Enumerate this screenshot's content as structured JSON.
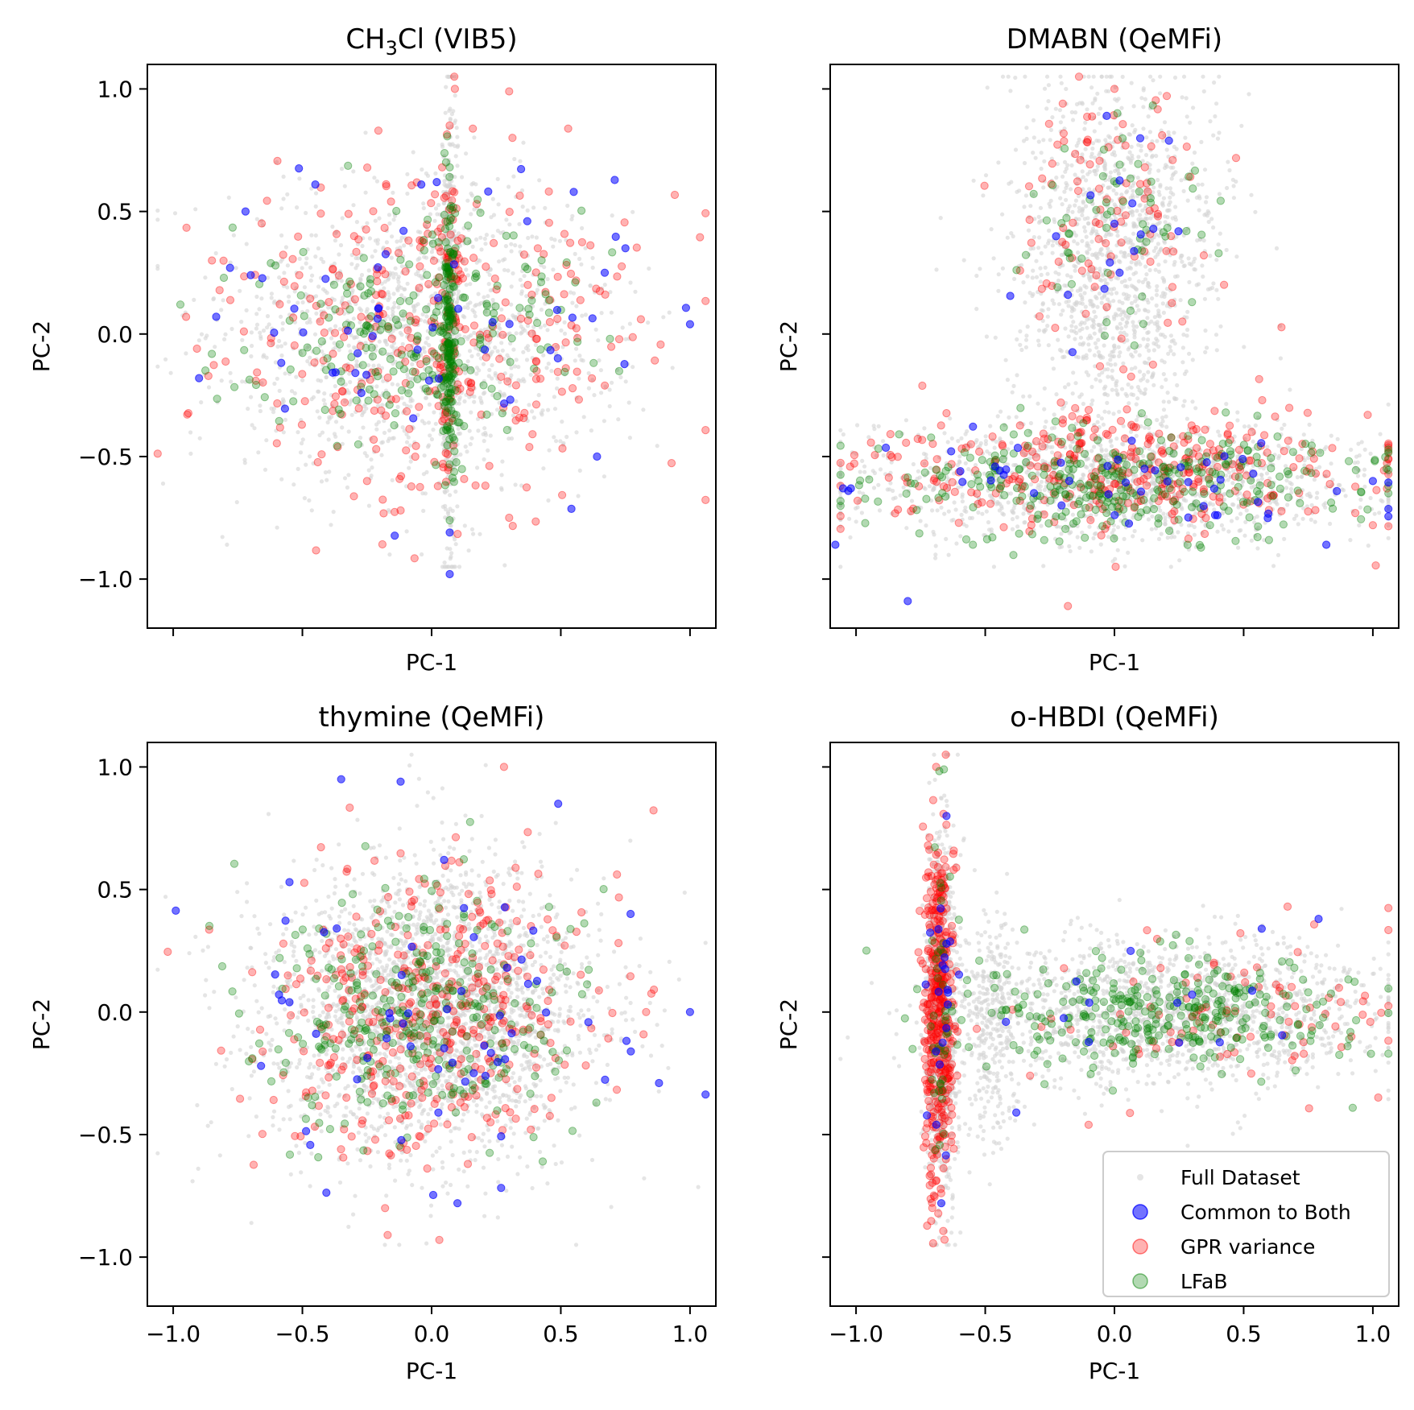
{
  "chart_data": [
    {
      "type": "scatter",
      "title": "CH3Cl (VIB5)",
      "title_main": "CH",
      "title_sub": "3",
      "title_rest": "Cl (VIB5)",
      "xlabel": "PC-1",
      "ylabel": "PC-2",
      "xlim": [
        -1.1,
        1.1
      ],
      "ylim": [
        -1.2,
        1.1
      ],
      "xticks": [
        -1.0,
        -0.5,
        0.0,
        0.5,
        1.0
      ],
      "yticks": [
        -1.0,
        -0.5,
        0.0,
        0.5,
        1.0
      ],
      "xticklabels_visible": false,
      "yticklabels_visible": true,
      "distribution": {
        "full": [
          {
            "cx": -0.05,
            "cy": 0.0,
            "sx": 0.38,
            "sy": 0.3,
            "n": 1400
          },
          {
            "cx": 0.07,
            "cy": 0.0,
            "sx": 0.015,
            "sy": 0.45,
            "n": 500
          }
        ],
        "gpr": [
          {
            "cx": 0.0,
            "cy": 0.0,
            "sx": 0.4,
            "sy": 0.35,
            "n": 330
          },
          {
            "cx": 0.07,
            "cy": 0.1,
            "sx": 0.02,
            "sy": 0.35,
            "n": 60
          }
        ],
        "lfab": [
          {
            "cx": -0.1,
            "cy": 0.0,
            "sx": 0.33,
            "sy": 0.22,
            "n": 220
          },
          {
            "cx": 0.07,
            "cy": 0.0,
            "sx": 0.012,
            "sy": 0.3,
            "n": 170
          }
        ],
        "common": [
          {
            "cx": 0.0,
            "cy": 0.0,
            "sx": 0.38,
            "sy": 0.28,
            "n": 50
          }
        ]
      },
      "series_points": {
        "common": [
          [
            -0.72,
            0.5
          ],
          [
            -0.9,
            -0.18
          ],
          [
            -0.78,
            0.27
          ],
          [
            -0.7,
            0.24
          ],
          [
            0.02,
            0.62
          ],
          [
            0.07,
            -0.98
          ],
          [
            0.07,
            -0.81
          ],
          [
            0.55,
            0.58
          ],
          [
            0.64,
            -0.5
          ],
          [
            0.67,
            0.25
          ],
          [
            0.75,
            0.35
          ],
          [
            1.0,
            0.04
          ],
          [
            -0.45,
            0.61
          ],
          [
            -0.04,
            0.61
          ]
        ],
        "gpr": [
          [
            -0.95,
            0.07
          ],
          [
            -0.85,
            0.3
          ],
          [
            0.3,
            0.99
          ],
          [
            0.09,
            1.0
          ],
          [
            0.81,
            0.06
          ],
          [
            -0.25,
            -0.6
          ],
          [
            0.3,
            -0.75
          ],
          [
            -0.12,
            -0.72
          ]
        ],
        "lfab": [
          [
            0.07,
            0.68
          ],
          [
            0.07,
            -0.76
          ]
        ]
      },
      "legend": null
    },
    {
      "type": "scatter",
      "title": "DMABN (QeMFi)",
      "xlabel": "PC-1",
      "ylabel": "PC-2",
      "xlim": [
        -1.1,
        1.1
      ],
      "ylim": [
        -1.2,
        1.1
      ],
      "xticks": [
        -1.0,
        -0.5,
        0.0,
        0.5,
        1.0
      ],
      "yticks": [
        -1.0,
        -0.5,
        0.0,
        0.5,
        1.0
      ],
      "xticklabels_visible": false,
      "yticklabels_visible": false,
      "distribution": {
        "full": [
          {
            "cx": 0.0,
            "cy": 0.45,
            "sx": 0.2,
            "sy": 0.3,
            "n": 1000
          },
          {
            "cx": 0.0,
            "cy": -0.05,
            "sx": 0.15,
            "sy": 0.2,
            "n": 300
          },
          {
            "cx": 0.0,
            "cy": -0.6,
            "sx": 0.5,
            "sy": 0.12,
            "n": 1400
          }
        ],
        "gpr": [
          {
            "cx": 0.0,
            "cy": 0.45,
            "sx": 0.2,
            "sy": 0.28,
            "n": 100
          },
          {
            "cx": 0.0,
            "cy": -0.55,
            "sx": 0.5,
            "sy": 0.13,
            "n": 350
          }
        ],
        "lfab": [
          {
            "cx": 0.0,
            "cy": 0.4,
            "sx": 0.18,
            "sy": 0.22,
            "n": 60
          },
          {
            "cx": 0.0,
            "cy": -0.6,
            "sx": 0.48,
            "sy": 0.11,
            "n": 330
          }
        ],
        "common": [
          {
            "cx": 0.0,
            "cy": 0.45,
            "sx": 0.15,
            "sy": 0.25,
            "n": 14
          },
          {
            "cx": 0.0,
            "cy": -0.6,
            "sx": 0.5,
            "sy": 0.1,
            "n": 46
          }
        ]
      },
      "series_points": {
        "common": [
          [
            -1.08,
            -0.86
          ],
          [
            -1.05,
            -0.63
          ],
          [
            -1.03,
            -0.64
          ],
          [
            -1.02,
            -0.63
          ],
          [
            -0.8,
            -1.09
          ],
          [
            -0.03,
            0.89
          ],
          [
            0.0,
            0.45
          ],
          [
            0.02,
            0.25
          ],
          [
            -0.18,
            0.16
          ],
          [
            1.0,
            -0.6
          ],
          [
            0.82,
            -0.86
          ]
        ],
        "gpr": [
          [
            -0.18,
            -1.11
          ],
          [
            -0.2,
            0.94
          ],
          [
            0.0,
            1.0
          ],
          [
            1.0,
            -0.78
          ],
          [
            0.98,
            -0.33
          ]
        ],
        "lfab": [
          [
            0.3,
            0.13
          ],
          [
            0.37,
            -0.78
          ]
        ]
      },
      "legend": null
    },
    {
      "type": "scatter",
      "title": "thymine (QeMFi)",
      "xlabel": "PC-1",
      "ylabel": "PC-2",
      "xlim": [
        -1.1,
        1.1
      ],
      "ylim": [
        -1.2,
        1.1
      ],
      "xticks": [
        -1.0,
        -0.5,
        0.0,
        0.5,
        1.0
      ],
      "yticks": [
        -1.0,
        -0.5,
        0.0,
        0.5,
        1.0
      ],
      "xticklabels_visible": true,
      "yticklabels_visible": true,
      "distribution": {
        "full": [
          {
            "cx": 0.0,
            "cy": 0.0,
            "sx": 0.32,
            "sy": 0.3,
            "n": 2400
          }
        ],
        "gpr": [
          {
            "cx": 0.0,
            "cy": 0.0,
            "sx": 0.33,
            "sy": 0.32,
            "n": 420
          }
        ],
        "lfab": [
          {
            "cx": -0.08,
            "cy": 0.0,
            "sx": 0.3,
            "sy": 0.26,
            "n": 320
          }
        ],
        "common": [
          {
            "cx": 0.0,
            "cy": 0.0,
            "sx": 0.35,
            "sy": 0.3,
            "n": 55
          }
        ]
      },
      "series_points": {
        "common": [
          [
            -0.66,
            -0.22
          ],
          [
            -0.35,
            0.95
          ],
          [
            -0.12,
            0.94
          ],
          [
            0.49,
            0.85
          ],
          [
            1.0,
            0.0
          ],
          [
            0.88,
            -0.29
          ],
          [
            -0.55,
            0.53
          ],
          [
            0.77,
            0.4
          ],
          [
            -0.55,
            0.04
          ],
          [
            0.1,
            -0.78
          ]
        ],
        "gpr": [
          [
            0.28,
            1.0
          ],
          [
            -0.17,
            -0.91
          ],
          [
            0.03,
            -0.93
          ],
          [
            0.83,
            0.0
          ],
          [
            -0.18,
            -0.8
          ]
        ],
        "lfab": [
          [
            0.43,
            -0.61
          ]
        ]
      },
      "legend": null
    },
    {
      "type": "scatter",
      "title": "o-HBDI (QeMFi)",
      "xlabel": "PC-1",
      "ylabel": "PC-2",
      "xlim": [
        -1.1,
        1.1
      ],
      "ylim": [
        -1.2,
        1.1
      ],
      "xticks": [
        -1.0,
        -0.5,
        0.0,
        0.5,
        1.0
      ],
      "yticks": [
        -1.0,
        -0.5,
        0.0,
        0.5,
        1.0
      ],
      "xticklabels_visible": true,
      "yticklabels_visible": false,
      "distribution": {
        "full": [
          {
            "cx": -0.67,
            "cy": 0.0,
            "sx": 0.03,
            "sy": 0.38,
            "n": 900
          },
          {
            "cx": -0.48,
            "cy": -0.05,
            "sx": 0.05,
            "sy": 0.25,
            "n": 300
          },
          {
            "cx": 0.2,
            "cy": 0.0,
            "sx": 0.4,
            "sy": 0.15,
            "n": 1500
          }
        ],
        "gpr": [
          {
            "cx": -0.68,
            "cy": 0.0,
            "sx": 0.03,
            "sy": 0.38,
            "n": 420
          },
          {
            "cx": 0.45,
            "cy": 0.0,
            "sx": 0.4,
            "sy": 0.15,
            "n": 90
          }
        ],
        "lfab": [
          {
            "cx": -0.67,
            "cy": 0.0,
            "sx": 0.025,
            "sy": 0.3,
            "n": 40
          },
          {
            "cx": 0.15,
            "cy": 0.0,
            "sx": 0.38,
            "sy": 0.12,
            "n": 330
          }
        ],
        "common": [
          {
            "cx": -0.68,
            "cy": 0.0,
            "sx": 0.03,
            "sy": 0.35,
            "n": 20
          },
          {
            "cx": 0.2,
            "cy": 0.0,
            "sx": 0.4,
            "sy": 0.15,
            "n": 12
          }
        ]
      },
      "series_points": {
        "common": [
          [
            -0.65,
            0.8
          ],
          [
            -0.67,
            -0.78
          ],
          [
            -0.38,
            -0.41
          ],
          [
            -0.42,
            -0.04
          ],
          [
            0.57,
            0.34
          ],
          [
            0.79,
            0.38
          ]
        ],
        "gpr": [
          [
            -0.69,
            1.0
          ],
          [
            0.67,
            0.43
          ],
          [
            0.99,
            -0.04
          ],
          [
            -0.1,
            -0.46
          ]
        ],
        "lfab": [
          [
            -0.66,
            0.99
          ]
        ]
      },
      "legend": {
        "position": "lower right",
        "entries": [
          {
            "key": "full",
            "label": "Full Dataset"
          },
          {
            "key": "common",
            "label": "Common to Both"
          },
          {
            "key": "gpr",
            "label": "GPR variance"
          },
          {
            "key": "lfab",
            "label": "LFaB"
          }
        ]
      }
    }
  ],
  "series_styles": {
    "full": {
      "color": "#d3d3d3",
      "opacity": 0.6
    },
    "common": {
      "color": "#0000ff",
      "opacity": 0.55
    },
    "gpr": {
      "color": "#ff0000",
      "opacity": 0.3
    },
    "lfab": {
      "color": "#008000",
      "opacity": 0.3
    }
  }
}
